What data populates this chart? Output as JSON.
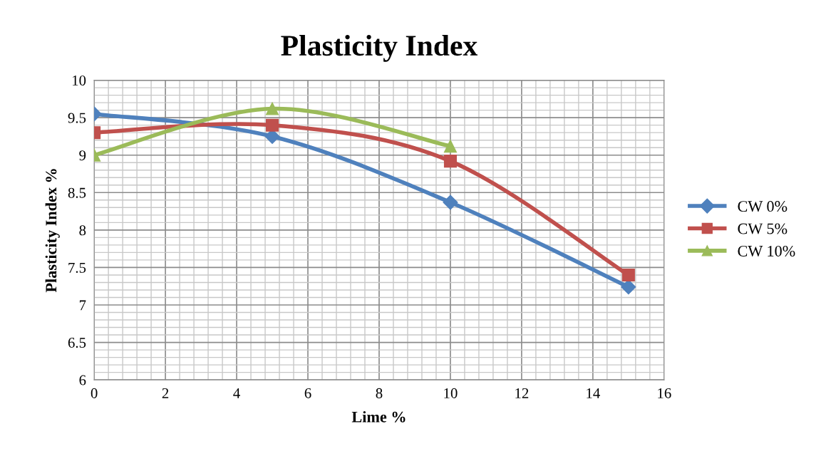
{
  "chart_data": {
    "type": "line",
    "title": "Plasticity Index",
    "xlabel": "Lime %",
    "ylabel": "Plasticity Index %",
    "x": [
      0,
      5,
      10,
      15
    ],
    "series": [
      {
        "name": "CW 0%",
        "color": "#4f81bd",
        "marker": "diamond",
        "values": [
          9.55,
          9.25,
          8.37,
          7.24
        ]
      },
      {
        "name": "CW 5%",
        "color": "#c0504d",
        "marker": "square",
        "values": [
          9.3,
          9.4,
          8.92,
          7.4
        ]
      },
      {
        "name": "CW 10%",
        "color": "#9bbb59",
        "marker": "triangle",
        "values": [
          9.0,
          9.62,
          9.12,
          null
        ]
      }
    ],
    "xlim": [
      0,
      16
    ],
    "xticks": [
      0,
      2,
      4,
      6,
      8,
      10,
      12,
      14,
      16
    ],
    "ylim": [
      6,
      10
    ],
    "yticks": [
      6,
      {
        "value": 6.5,
        "label": "6.5"
      },
      7,
      {
        "value": 7.5,
        "label": "7.5"
      },
      8,
      {
        "value": 8.5,
        "label": "8.5"
      },
      9,
      {
        "value": 9.5,
        "label": "9.5"
      },
      10
    ],
    "grid": true,
    "legend": "right",
    "line_style": "solid"
  }
}
